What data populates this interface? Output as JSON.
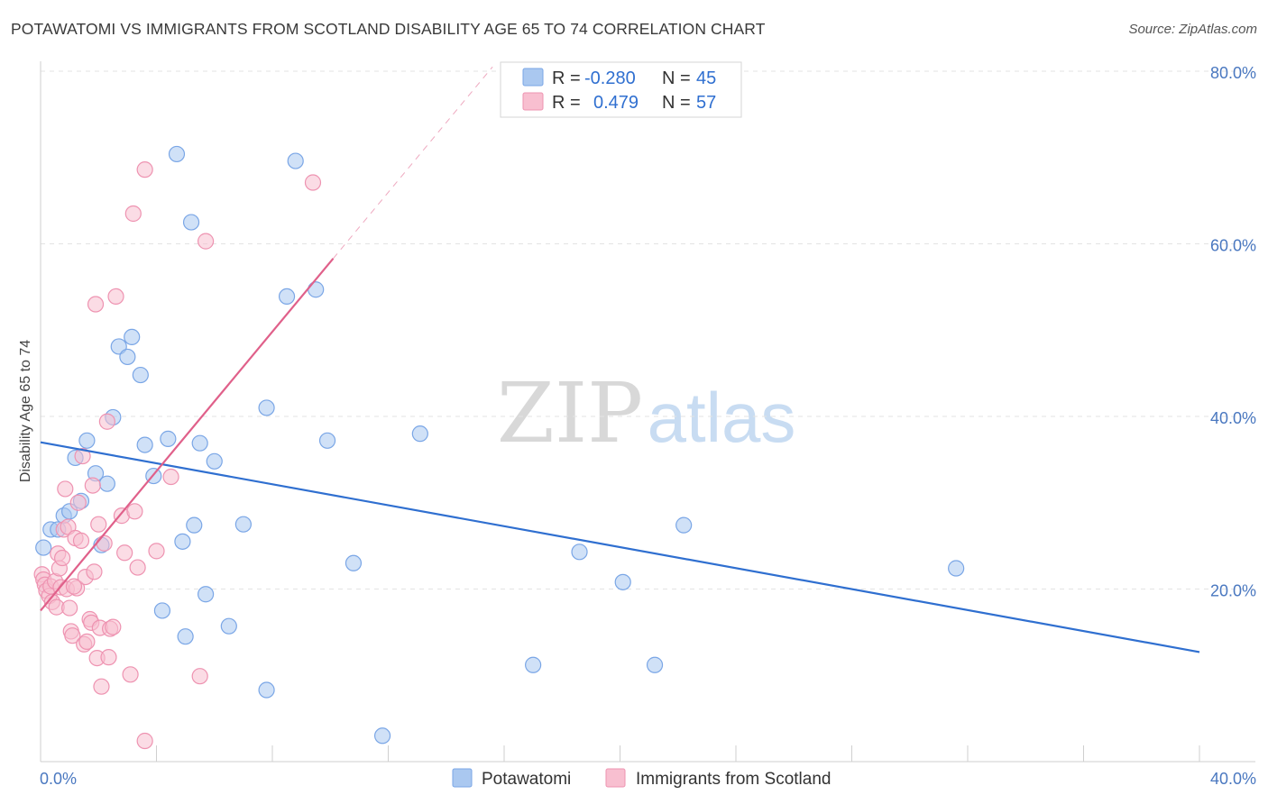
{
  "title": "POTAWATOMI VS IMMIGRANTS FROM SCOTLAND DISABILITY AGE 65 TO 74 CORRELATION CHART",
  "source": "Source: ZipAtlas.com",
  "watermark": {
    "zip": "ZIP",
    "atlas": "atlas"
  },
  "colors": {
    "blue_fill": "#aac8f0",
    "blue_stroke": "#7aa6e6",
    "blue_line": "#2f6fd0",
    "pink_fill": "#f8bfd0",
    "pink_stroke": "#ee93b1",
    "pink_line": "#e0608a",
    "grid": "#e3e3e3",
    "tick_text": "#4a78c0"
  },
  "chart_data": {
    "type": "scatter",
    "title": "POTAWATOMI VS IMMIGRANTS FROM SCOTLAND DISABILITY AGE 65 TO 74 CORRELATION CHART",
    "xlabel": "",
    "ylabel": "Disability Age 65 to 74",
    "xlim": [
      0,
      40
    ],
    "ylim": [
      0,
      80
    ],
    "x_tick_labels": [
      {
        "value": 0,
        "label": "0.0%"
      },
      {
        "value": 40,
        "label": "40.0%"
      }
    ],
    "y_tick_labels": [
      {
        "value": 20,
        "label": "20.0%"
      },
      {
        "value": 40,
        "label": "40.0%"
      },
      {
        "value": 60,
        "label": "60.0%"
      },
      {
        "value": 80,
        "label": "80.0%"
      }
    ],
    "grid": true,
    "legend_position": "top-center",
    "stats_legend": [
      {
        "series": "Potawatomi",
        "r_label": "R =",
        "r": "-0.280",
        "n_label": "N =",
        "n": "45"
      },
      {
        "series": "Immigrants from Scotland",
        "r_label": "R =",
        "r": "0.479",
        "n_label": "N =",
        "n": "57"
      }
    ],
    "series": [
      {
        "name": "Potawatomi",
        "color": "#aac8f0",
        "points": [
          [
            0.1,
            24.8
          ],
          [
            0.35,
            26.9
          ],
          [
            0.6,
            26.9
          ],
          [
            0.8,
            28.5
          ],
          [
            1.0,
            29.0
          ],
          [
            1.2,
            35.2
          ],
          [
            1.4,
            30.2
          ],
          [
            1.6,
            37.2
          ],
          [
            1.9,
            33.4
          ],
          [
            2.1,
            25.1
          ],
          [
            2.3,
            32.2
          ],
          [
            2.5,
            39.9
          ],
          [
            2.7,
            48.1
          ],
          [
            3.0,
            46.9
          ],
          [
            3.15,
            49.2
          ],
          [
            3.45,
            44.8
          ],
          [
            3.6,
            36.7
          ],
          [
            3.9,
            33.1
          ],
          [
            4.2,
            17.5
          ],
          [
            4.4,
            37.4
          ],
          [
            4.7,
            70.4
          ],
          [
            4.9,
            25.5
          ],
          [
            5.0,
            14.5
          ],
          [
            5.2,
            62.5
          ],
          [
            5.3,
            27.4
          ],
          [
            5.5,
            36.9
          ],
          [
            5.7,
            19.4
          ],
          [
            6.0,
            34.8
          ],
          [
            6.5,
            15.7
          ],
          [
            7.0,
            27.5
          ],
          [
            7.8,
            41.0
          ],
          [
            7.8,
            8.3
          ],
          [
            8.5,
            53.9
          ],
          [
            8.8,
            69.6
          ],
          [
            9.5,
            54.7
          ],
          [
            9.9,
            37.2
          ],
          [
            10.8,
            23.0
          ],
          [
            11.8,
            3.0
          ],
          [
            13.1,
            38.0
          ],
          [
            17.0,
            11.2
          ],
          [
            18.6,
            24.3
          ],
          [
            20.1,
            20.8
          ],
          [
            21.2,
            11.2
          ],
          [
            22.2,
            27.4
          ],
          [
            31.6,
            22.4
          ]
        ]
      },
      {
        "name": "Immigrants from Scotland",
        "color": "#f8bfd0",
        "points": [
          [
            0.05,
            21.7
          ],
          [
            0.1,
            21.1
          ],
          [
            0.15,
            20.5
          ],
          [
            0.2,
            19.8
          ],
          [
            0.3,
            19.2
          ],
          [
            0.35,
            20.3
          ],
          [
            0.4,
            18.5
          ],
          [
            0.5,
            20.9
          ],
          [
            0.55,
            17.9
          ],
          [
            0.6,
            24.1
          ],
          [
            0.65,
            22.4
          ],
          [
            0.7,
            20.2
          ],
          [
            0.75,
            23.6
          ],
          [
            0.8,
            26.9
          ],
          [
            0.85,
            31.6
          ],
          [
            0.9,
            20.0
          ],
          [
            0.95,
            27.2
          ],
          [
            1.0,
            17.8
          ],
          [
            1.05,
            15.1
          ],
          [
            1.1,
            14.6
          ],
          [
            1.2,
            25.9
          ],
          [
            1.25,
            20.1
          ],
          [
            1.3,
            30.0
          ],
          [
            1.4,
            25.6
          ],
          [
            1.45,
            35.4
          ],
          [
            1.5,
            13.6
          ],
          [
            1.55,
            21.4
          ],
          [
            1.6,
            13.9
          ],
          [
            1.7,
            16.5
          ],
          [
            1.75,
            16.1
          ],
          [
            1.8,
            32.0
          ],
          [
            1.85,
            22.0
          ],
          [
            1.9,
            53.0
          ],
          [
            1.95,
            12.0
          ],
          [
            2.0,
            27.5
          ],
          [
            2.05,
            15.5
          ],
          [
            2.1,
            8.7
          ],
          [
            2.2,
            25.3
          ],
          [
            2.3,
            39.4
          ],
          [
            2.35,
            12.1
          ],
          [
            2.4,
            15.4
          ],
          [
            2.5,
            15.6
          ],
          [
            2.6,
            53.9
          ],
          [
            2.8,
            28.5
          ],
          [
            2.9,
            24.2
          ],
          [
            3.1,
            10.1
          ],
          [
            3.2,
            63.5
          ],
          [
            3.25,
            29.0
          ],
          [
            3.35,
            22.5
          ],
          [
            3.6,
            2.4
          ],
          [
            3.6,
            68.6
          ],
          [
            4.0,
            24.4
          ],
          [
            4.5,
            33.0
          ],
          [
            5.5,
            9.9
          ],
          [
            5.7,
            60.3
          ],
          [
            9.4,
            67.1
          ],
          [
            1.15,
            20.3
          ]
        ]
      }
    ],
    "trendlines": [
      {
        "series": "Potawatomi",
        "style": "solid",
        "x": [
          0,
          40
        ],
        "y": [
          37.0,
          12.7
        ]
      },
      {
        "series": "Immigrants from Scotland",
        "style": "solid",
        "x": [
          0,
          10.1
        ],
        "y": [
          17.5,
          58.3
        ]
      },
      {
        "series": "Immigrants from Scotland",
        "style": "dashed",
        "x": [
          10.1,
          15.6
        ],
        "y": [
          58.3,
          80.5
        ]
      }
    ]
  },
  "bottom_legend": [
    {
      "label": "Potawatomi",
      "color": "#aac8f0"
    },
    {
      "label": "Immigrants from Scotland",
      "color": "#f8bfd0"
    }
  ]
}
